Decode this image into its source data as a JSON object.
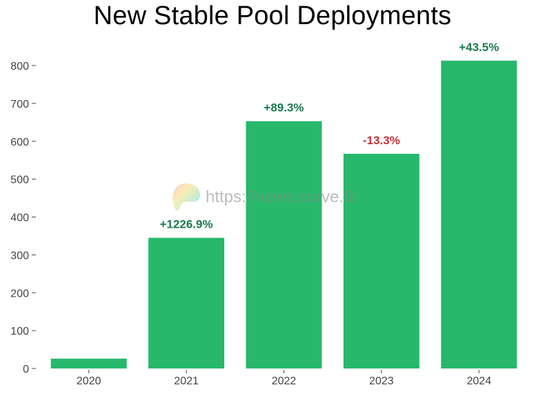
{
  "chart_data": {
    "type": "bar",
    "title": "New Stable Pool Deployments",
    "categories": [
      "2020",
      "2021",
      "2022",
      "2023",
      "2024"
    ],
    "values": [
      26,
      345,
      653,
      567,
      813
    ],
    "data_labels": [
      "",
      "+1226.9%",
      "+89.3%",
      "-13.3%",
      "+43.5%"
    ],
    "label_colors": [
      "#1a7a4f",
      "#1a7a4f",
      "#1a7a4f",
      "#c0323a",
      "#1a7a4f"
    ],
    "yticks": [
      0,
      100,
      200,
      300,
      400,
      500,
      600,
      700,
      800
    ],
    "ylim": [
      0,
      800
    ],
    "xlabel": "",
    "ylabel": "",
    "grid": false,
    "bar_color": "#27b86b",
    "axis_text_color": "#444444"
  },
  "watermark": {
    "text": "https://news.curve.fi/",
    "icon": "curve-logo-icon"
  }
}
